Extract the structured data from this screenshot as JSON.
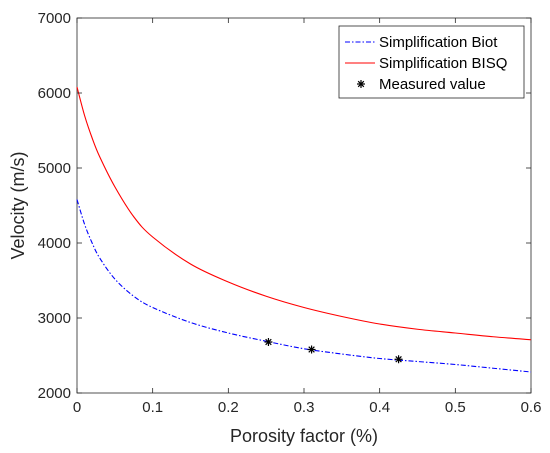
{
  "chart_data": {
    "type": "line",
    "xlabel": "Porosity factor (%)",
    "ylabel": "Velocity (m/s)",
    "xlim": [
      0,
      0.6
    ],
    "ylim": [
      2000,
      7000
    ],
    "xticks": [
      0,
      0.1,
      0.2,
      0.3,
      0.4,
      0.5,
      0.6
    ],
    "xtick_labels": [
      "0",
      "0.1",
      "0.2",
      "0.3",
      "0.4",
      "0.5",
      "0.6"
    ],
    "yticks": [
      2000,
      3000,
      4000,
      5000,
      6000,
      7000
    ],
    "ytick_labels": [
      "2000",
      "3000",
      "4000",
      "5000",
      "6000",
      "7000"
    ],
    "grid": false,
    "legend_position": "top-right",
    "series": [
      {
        "name": "Simplification Biot",
        "style": "dash-dot",
        "color": "#0000ff",
        "x": [
          0,
          0.01,
          0.02,
          0.03,
          0.05,
          0.075,
          0.1,
          0.15,
          0.2,
          0.25,
          0.3,
          0.35,
          0.4,
          0.45,
          0.5,
          0.55,
          0.6
        ],
        "y": [
          4580,
          4250,
          4000,
          3800,
          3520,
          3290,
          3140,
          2940,
          2800,
          2690,
          2590,
          2520,
          2460,
          2420,
          2380,
          2330,
          2280
        ]
      },
      {
        "name": "Simplification BISQ",
        "style": "solid",
        "color": "#ff0000",
        "x": [
          0,
          0.01,
          0.02,
          0.03,
          0.05,
          0.075,
          0.1,
          0.15,
          0.2,
          0.25,
          0.3,
          0.35,
          0.4,
          0.45,
          0.5,
          0.55,
          0.6
        ],
        "y": [
          6080,
          5700,
          5400,
          5150,
          4750,
          4350,
          4080,
          3720,
          3480,
          3290,
          3140,
          3020,
          2920,
          2850,
          2800,
          2750,
          2710
        ]
      },
      {
        "name": "Measured value",
        "style": "markers",
        "marker": "asterisk",
        "color": "#000000",
        "x": [
          0.253,
          0.31,
          0.425
        ],
        "y": [
          2680,
          2580,
          2450
        ]
      }
    ]
  }
}
